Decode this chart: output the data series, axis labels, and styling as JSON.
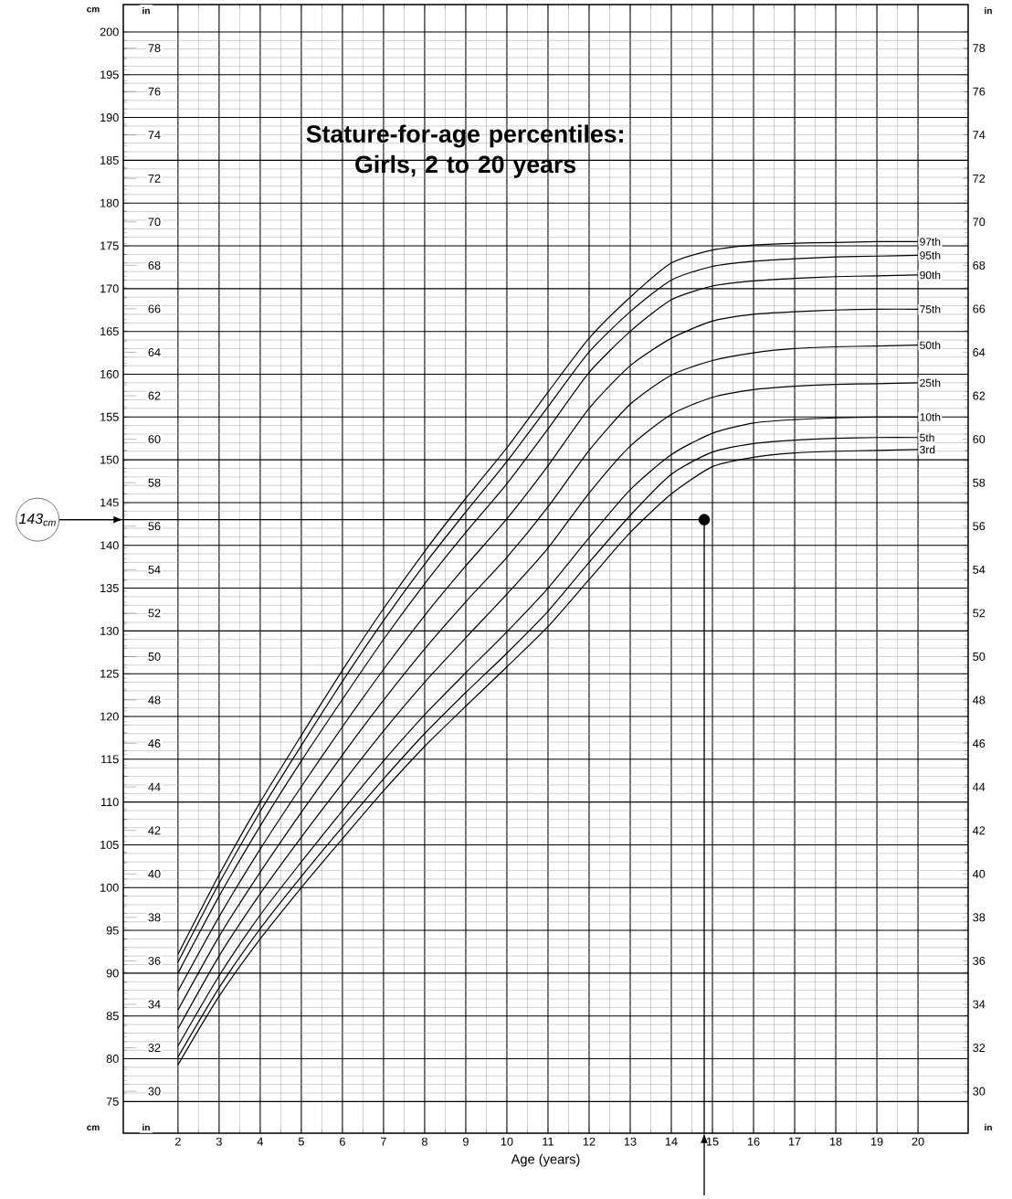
{
  "chart_data": {
    "type": "line",
    "title": "Stature-for-age percentiles: Girls, 2 to 20 years",
    "xlabel": "Age (years)",
    "ylabel": "cm",
    "y2label": "in",
    "y3label": "in",
    "x": [
      2,
      3,
      4,
      5,
      6,
      7,
      8,
      9,
      10,
      11,
      12,
      13,
      14,
      15,
      16,
      17,
      18,
      19,
      20
    ],
    "series": [
      {
        "name": "97th",
        "color": "#000000",
        "values": [
          92.2,
          101.5,
          110.0,
          117.8,
          125.4,
          132.6,
          139.3,
          145.5,
          151.4,
          157.9,
          164.2,
          169.0,
          173.0,
          174.5,
          175.1,
          175.3,
          175.4,
          175.5,
          175.5
        ]
      },
      {
        "name": "95th",
        "color": "#000000",
        "values": [
          91.3,
          100.5,
          108.9,
          116.6,
          124.1,
          131.2,
          137.8,
          143.9,
          149.8,
          156.2,
          162.6,
          167.3,
          171.0,
          172.6,
          173.2,
          173.5,
          173.7,
          173.8,
          173.9
        ]
      },
      {
        "name": "90th",
        "color": "#000000",
        "values": [
          90.0,
          99.0,
          107.2,
          114.8,
          122.0,
          129.0,
          135.5,
          141.5,
          147.2,
          153.6,
          160.2,
          165.0,
          168.7,
          170.3,
          170.9,
          171.2,
          171.4,
          171.5,
          171.6
        ]
      },
      {
        "name": "75th",
        "color": "#000000",
        "values": [
          87.9,
          96.6,
          104.5,
          111.8,
          118.8,
          125.5,
          131.8,
          137.6,
          143.1,
          149.3,
          156.0,
          161.0,
          164.2,
          166.2,
          167.0,
          167.3,
          167.5,
          167.6,
          167.6
        ]
      },
      {
        "name": "50th",
        "color": "#000000",
        "values": [
          85.7,
          94.3,
          101.8,
          108.8,
          115.5,
          121.9,
          127.9,
          133.4,
          138.6,
          144.5,
          151.1,
          156.5,
          159.9,
          161.6,
          162.5,
          163.0,
          163.2,
          163.3,
          163.4
        ]
      },
      {
        "name": "25th",
        "color": "#000000",
        "values": [
          83.5,
          92.0,
          99.3,
          105.9,
          112.2,
          118.3,
          124.0,
          129.2,
          134.3,
          139.7,
          146.1,
          151.6,
          155.3,
          157.3,
          158.2,
          158.6,
          158.8,
          158.9,
          159.0
        ]
      },
      {
        "name": "10th",
        "color": "#000000",
        "values": [
          81.5,
          89.7,
          96.8,
          103.0,
          109.0,
          114.8,
          120.2,
          125.1,
          129.9,
          135.0,
          140.9,
          146.5,
          150.6,
          153.1,
          154.3,
          154.7,
          154.9,
          155.0,
          155.0
        ]
      },
      {
        "name": "5th",
        "color": "#000000",
        "values": [
          80.2,
          88.3,
          95.2,
          101.3,
          107.1,
          112.7,
          118.0,
          122.8,
          127.4,
          132.3,
          138.0,
          143.5,
          148.3,
          150.9,
          151.9,
          152.3,
          152.5,
          152.6,
          152.6
        ]
      },
      {
        "name": "3rd",
        "color": "#000000",
        "values": [
          79.3,
          87.3,
          94.0,
          100.0,
          105.7,
          111.3,
          116.5,
          121.2,
          125.8,
          130.5,
          136.0,
          141.5,
          146.0,
          149.2,
          150.3,
          150.8,
          151.0,
          151.1,
          151.2
        ]
      },
      {
        "type": "scatter",
        "color": "#000000",
        "x": [
          14.8
        ],
        "values": [
          143
        ]
      }
    ],
    "xlim": [
      0.67,
      21.22
    ],
    "xticks": [
      2,
      3,
      4,
      5,
      6,
      7,
      8,
      9,
      10,
      11,
      12,
      13,
      14,
      15,
      16,
      17,
      18,
      19,
      20
    ],
    "ylim": [
      71.3,
      203.2
    ],
    "yticks": [
      75,
      80,
      85,
      90,
      95,
      100,
      105,
      110,
      115,
      120,
      125,
      130,
      135,
      140,
      145,
      150,
      155,
      160,
      165,
      170,
      175,
      180,
      185,
      190,
      195,
      200
    ],
    "y2lim": [
      28.07,
      80.0
    ],
    "y2ticks": [
      30,
      32,
      34,
      36,
      38,
      40,
      42,
      44,
      46,
      48,
      50,
      52,
      54,
      56,
      58,
      60,
      62,
      64,
      66,
      68,
      70,
      72,
      74,
      76,
      78
    ],
    "y3lim": [
      28.07,
      80.0
    ],
    "y3ticks": [
      30,
      32,
      34,
      36,
      38,
      40,
      42,
      44,
      46,
      48,
      50,
      52,
      54,
      56,
      58,
      60,
      62,
      64,
      66,
      68,
      70,
      72,
      74,
      76,
      78
    ],
    "grid": true,
    "ref_lines": [
      {
        "axis": "y",
        "value": 143,
        "label": "143$_{cm}$",
        "color": "#000000"
      },
      {
        "axis": "x",
        "value": 14.8,
        "label": null,
        "color": "#000000"
      }
    ]
  }
}
